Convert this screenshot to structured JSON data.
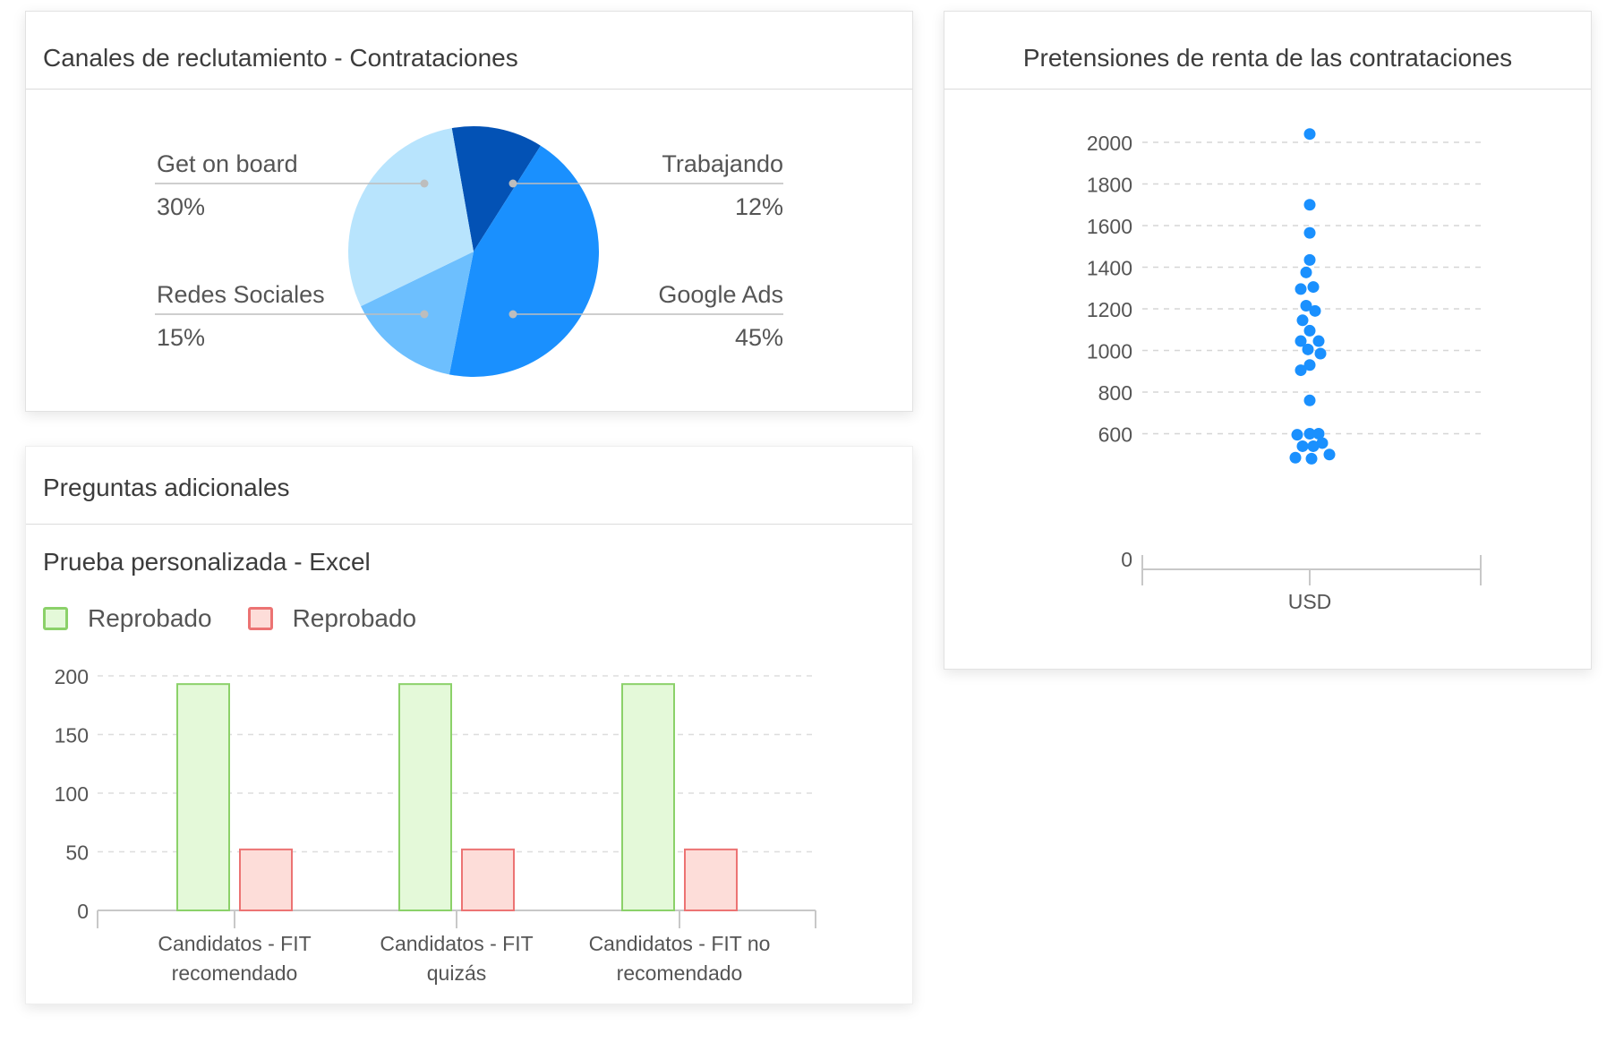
{
  "pie_card": {
    "title": "Canales de reclutamiento - Contrataciones"
  },
  "scatter_card": {
    "title": "Pretensiones de renta de las contrataciones"
  },
  "bar_card": {
    "title": "Preguntas adicionales",
    "subtitle": "Prueba personalizada - Excel",
    "legend": [
      {
        "label": "Reprobado",
        "color": "#8bd169",
        "fill": "#e4f9d9"
      },
      {
        "label": "Reprobado",
        "color": "#ec7373",
        "fill": "#fdddd9"
      }
    ]
  },
  "chart_data": [
    {
      "type": "pie",
      "title": "Canales de reclutamiento - Contrataciones",
      "slices": [
        {
          "label": "Trabajando",
          "value": 12,
          "display": "12%",
          "color": "#0352b5"
        },
        {
          "label": "Google Ads",
          "value": 45,
          "display": "45%",
          "color": "#1a90fe"
        },
        {
          "label": "Redes Sociales",
          "value": 15,
          "display": "15%",
          "color": "#6dbffe"
        },
        {
          "label": "Get on board",
          "value": 30,
          "display": "30%",
          "color": "#b8e4fd"
        }
      ]
    },
    {
      "type": "scatter",
      "title": "Pretensiones de renta de las contrataciones",
      "xlabel": "USD",
      "ylim": [
        0,
        2000
      ],
      "yticks": [
        0,
        600,
        800,
        1000,
        1200,
        1400,
        1600,
        1800,
        2000
      ],
      "color": "#1a90fe",
      "points": [
        {
          "x": 0,
          "y": 2040
        },
        {
          "x": 0,
          "y": 1700
        },
        {
          "x": 0,
          "y": 1565
        },
        {
          "x": 0,
          "y": 1435
        },
        {
          "x": -0.1,
          "y": 1375
        },
        {
          "x": -0.25,
          "y": 1295
        },
        {
          "x": 0.1,
          "y": 1305
        },
        {
          "x": -0.1,
          "y": 1215
        },
        {
          "x": 0.15,
          "y": 1190
        },
        {
          "x": -0.2,
          "y": 1145
        },
        {
          "x": 0,
          "y": 1095
        },
        {
          "x": -0.25,
          "y": 1045
        },
        {
          "x": 0.25,
          "y": 1045
        },
        {
          "x": -0.05,
          "y": 1005
        },
        {
          "x": 0.3,
          "y": 985
        },
        {
          "x": 0,
          "y": 930
        },
        {
          "x": -0.25,
          "y": 905
        },
        {
          "x": 0,
          "y": 760
        },
        {
          "x": -0.35,
          "y": 595
        },
        {
          "x": 0,
          "y": 600
        },
        {
          "x": 0.25,
          "y": 600
        },
        {
          "x": -0.2,
          "y": 540
        },
        {
          "x": 0.1,
          "y": 540
        },
        {
          "x": 0.35,
          "y": 555
        },
        {
          "x": -0.4,
          "y": 485
        },
        {
          "x": 0.05,
          "y": 480
        },
        {
          "x": 0.55,
          "y": 500
        }
      ]
    },
    {
      "type": "bar",
      "title": "Prueba personalizada - Excel",
      "categories": [
        [
          "Candidatos - FIT",
          "recomendado"
        ],
        [
          "Candidatos - FIT",
          "quizás"
        ],
        [
          "Candidatos - FIT no",
          "recomendado"
        ]
      ],
      "ylim": [
        0,
        200
      ],
      "yticks": [
        0,
        50,
        100,
        150,
        200
      ],
      "series": [
        {
          "name": "Reprobado",
          "values": [
            193,
            193,
            193
          ],
          "stroke": "#8bd169",
          "fill": "#e4f9d9"
        },
        {
          "name": "Reprobado",
          "values": [
            52,
            52,
            52
          ],
          "stroke": "#ec7373",
          "fill": "#fdddd9"
        }
      ]
    }
  ]
}
